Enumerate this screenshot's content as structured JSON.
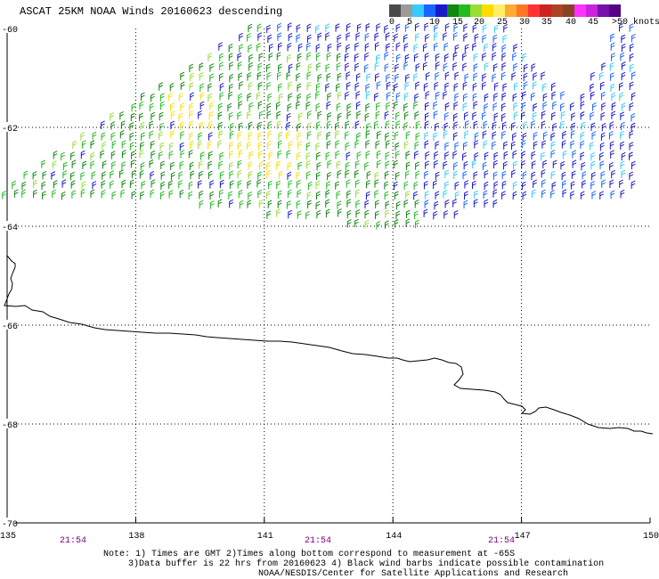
{
  "header": {
    "title": "ASCAT 25KM NOAA Winds 20160623 descending"
  },
  "colorbar": {
    "labels": [
      "0",
      "5",
      "10",
      "15",
      "20",
      "25",
      "30",
      "35",
      "40",
      "45",
      ">50 knots"
    ],
    "colors": [
      "#4a4a4a",
      "#9a9a9a",
      "#33ccff",
      "#1a66ff",
      "#1a1acc",
      "#118811",
      "#22bb22",
      "#99dd33",
      "#ffdd00",
      "#ffee66",
      "#ffaa33",
      "#ff7722",
      "#ff3333",
      "#cc2222",
      "#aa4422",
      "#884422",
      "#ff33ff",
      "#cc22dd",
      "#7711aa",
      "#550088"
    ]
  },
  "chart_data": {
    "type": "map",
    "xlim": [
      135,
      150
    ],
    "ylim": [
      -70,
      -60
    ],
    "x_ticks": [
      "135",
      "138",
      "141",
      "144",
      "147",
      "150"
    ],
    "y_ticks": [
      "-60",
      "-62",
      "-64",
      "-66",
      "-68",
      "-70"
    ],
    "times": [
      "21:54",
      "21:54",
      "21:54"
    ],
    "time_color": "#770077",
    "grid": "dotted"
  },
  "notes": {
    "line1": "Note: 1) Times are GMT 2)Times along bottom correspond to measurement at -65S",
    "line2": "3)Data buffer is 22 hrs from 20160623 4) Black wind barbs indicate possible contamination",
    "line3": "NOAA/NESDIS/Center for Satellite Applications and Research"
  }
}
